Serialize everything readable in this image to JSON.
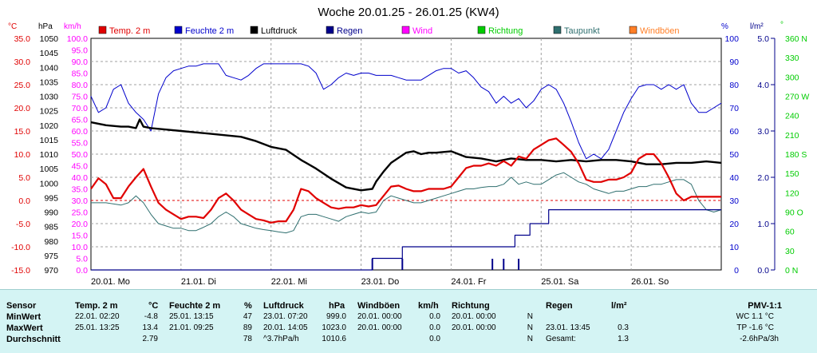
{
  "title": "Woche 20.01.25 - 26.01.25 (KW4)",
  "colors": {
    "temp": "#e00000",
    "humidity": "#0000cc",
    "pressure": "#000000",
    "rain": "#00008b",
    "wind": "#ff00ff",
    "direction": "#00cc00",
    "dewpoint": "#2f6f6f",
    "gusts": "#ff7f27",
    "grid": "#a0a0a0",
    "zero": "#e00000"
  },
  "legend": [
    {
      "label": "Temp. 2 m",
      "color": "#e00000"
    },
    {
      "label": "Feuchte  2 m",
      "color": "#0000cc"
    },
    {
      "label": "Luftdruck",
      "color": "#000000"
    },
    {
      "label": "Regen",
      "color": "#00008b"
    },
    {
      "label": "Wind",
      "color": "#ff00ff"
    },
    {
      "label": "Richtung",
      "color": "#00cc00"
    },
    {
      "label": "Taupunkt",
      "color": "#2f6f6f"
    },
    {
      "label": "Windböen",
      "color": "#ff7f27"
    }
  ],
  "axis_units": {
    "temp": "°C",
    "pressure": "hPa",
    "wind": "km/h",
    "humidity": "%",
    "rain": "l/m²",
    "direction": "°"
  },
  "chart_data": {
    "type": "line",
    "title": "Woche 20.01.25 - 26.01.25 (KW4)",
    "x_unit": "hours since 20.01. 00:00",
    "x_range": [
      0,
      168
    ],
    "x_tick_labels": [
      "20.01. Mo",
      "21.01. Di",
      "22.01. Mi",
      "23.01. Do",
      "24.01. Fr",
      "25.01. Sa",
      "26.01. So"
    ],
    "temp_ticks": [
      "35.0",
      "30.0",
      "25.0",
      "20.0",
      "15.0",
      "10.0",
      "5.0",
      "0.0",
      "-5.0",
      "-10.0",
      "-15.0"
    ],
    "pressure_ticks": [
      "1050",
      "1045",
      "1040",
      "1035",
      "1030",
      "1025",
      "1020",
      "1015",
      "1010",
      "1005",
      "1000",
      "995",
      "990",
      "985",
      "980",
      "975",
      "970"
    ],
    "wind_ticks": [
      "100.0",
      "95.0",
      "90.0",
      "85.0",
      "80.0",
      "75.0",
      "70.0",
      "65.0",
      "60.0",
      "55.0",
      "50.0",
      "45.0",
      "40.0",
      "35.0",
      "30.0",
      "25.0",
      "20.0",
      "15.0",
      "10.0",
      "5.0",
      "0.0"
    ],
    "humidity_ticks": [
      "100",
      "90",
      "80",
      "70",
      "60",
      "50",
      "40",
      "30",
      "20",
      "10",
      "0"
    ],
    "rain_ticks": [
      "5.0",
      "4.0",
      "3.0",
      "2.0",
      "1.0",
      "0.0"
    ],
    "direction_ticks": [
      "360 N",
      "330",
      "300",
      "270 W",
      "240",
      "210",
      "180 S",
      "150",
      "120",
      "90 O",
      "60",
      "30",
      "0 N"
    ],
    "ylim_temp": [
      -15,
      35
    ],
    "ylim_pressure": [
      970,
      1050
    ],
    "ylim_humidity": [
      0,
      100
    ],
    "ylim_rain": [
      0,
      5
    ],
    "series": [
      {
        "name": "Temp. 2 m",
        "axis": "temp",
        "color": "#e00000",
        "x": [
          0,
          2,
          4,
          6,
          8,
          10,
          12,
          14,
          16,
          18,
          20,
          22,
          24,
          26,
          28,
          30,
          32,
          34,
          36,
          38,
          40,
          42,
          44,
          46,
          48,
          50,
          52,
          54,
          56,
          58,
          60,
          62,
          64,
          66,
          68,
          70,
          72,
          74,
          76,
          78,
          80,
          82,
          84,
          86,
          88,
          90,
          92,
          94,
          96,
          98,
          100,
          102,
          104,
          106,
          108,
          110,
          112,
          114,
          116,
          118,
          120,
          122,
          124,
          126,
          128,
          130,
          132,
          134,
          136,
          138,
          140,
          142,
          144,
          146,
          148,
          150,
          152,
          154,
          156,
          158,
          160,
          162,
          164,
          166,
          168
        ],
        "y": [
          2.5,
          4.8,
          3.5,
          0.5,
          0.5,
          3.0,
          5.0,
          6.8,
          3.0,
          -0.5,
          -2.0,
          -3.0,
          -4.0,
          -3.5,
          -3.5,
          -3.8,
          -2.0,
          0.5,
          1.5,
          0,
          -2.0,
          -3.0,
          -4.0,
          -4.3,
          -4.8,
          -4.5,
          -4.5,
          -2.0,
          2.5,
          2.0,
          0.5,
          -0.5,
          -1.5,
          -1.8,
          -1.5,
          -1.5,
          -1.0,
          -1.3,
          -1.0,
          1.0,
          3.0,
          3.2,
          2.5,
          2.0,
          2.0,
          2.5,
          2.5,
          2.5,
          3.0,
          5.0,
          7.0,
          7.5,
          7.5,
          8.0,
          7.5,
          8.5,
          7.5,
          9.5,
          9.0,
          11.0,
          12.0,
          13.0,
          13.4,
          12.0,
          10.5,
          8.0,
          4.5,
          4.0,
          4.0,
          4.5,
          4.5,
          5.0,
          6.0,
          9.0,
          10.0,
          10.0,
          8.0,
          5.0,
          1.5,
          0.0,
          0.8,
          0.8,
          0.8,
          0.8,
          0.8
        ]
      },
      {
        "name": "Taupunkt",
        "axis": "temp",
        "color": "#2f6f6f",
        "x": [
          0,
          4,
          8,
          10,
          12,
          14,
          16,
          18,
          20,
          22,
          24,
          26,
          28,
          30,
          32,
          34,
          36,
          38,
          40,
          42,
          44,
          46,
          48,
          50,
          52,
          54,
          56,
          58,
          60,
          62,
          64,
          66,
          68,
          70,
          72,
          74,
          76,
          78,
          80,
          82,
          84,
          86,
          88,
          90,
          92,
          94,
          96,
          98,
          100,
          102,
          104,
          106,
          108,
          110,
          112,
          114,
          116,
          118,
          120,
          122,
          124,
          126,
          128,
          130,
          132,
          134,
          136,
          138,
          140,
          142,
          144,
          146,
          148,
          150,
          152,
          154,
          156,
          158,
          160,
          162,
          164,
          166,
          168
        ],
        "y": [
          -0.5,
          -0.5,
          -1.0,
          -0.5,
          1.0,
          -0.5,
          -3.0,
          -5.0,
          -5.5,
          -6.0,
          -6.0,
          -6.5,
          -6.5,
          -5.8,
          -5.0,
          -3.5,
          -2.5,
          -3.5,
          -5.0,
          -5.5,
          -6.0,
          -6.3,
          -6.5,
          -6.8,
          -7.0,
          -6.5,
          -3.5,
          -3.0,
          -3.0,
          -3.5,
          -4.0,
          -4.5,
          -3.5,
          -3.0,
          -2.5,
          -2.8,
          -2.5,
          0.0,
          1.0,
          0.5,
          0.0,
          -0.5,
          -0.5,
          0.0,
          0.5,
          1.0,
          1.5,
          2.0,
          2.5,
          2.5,
          2.8,
          3.0,
          3.0,
          3.5,
          5.0,
          3.5,
          4.0,
          3.5,
          3.5,
          4.5,
          5.5,
          6.0,
          5.0,
          4.0,
          3.5,
          2.5,
          2.0,
          1.5,
          2.0,
          2.0,
          2.5,
          3.0,
          3.0,
          3.5,
          3.5,
          4.0,
          4.5,
          4.5,
          3.5,
          0.0,
          -2.0,
          -2.5,
          -2.0
        ]
      },
      {
        "name": "Luftdruck",
        "axis": "pressure",
        "color": "#000000",
        "x": [
          0,
          4,
          8,
          10,
          12,
          13,
          14,
          16,
          20,
          24,
          28,
          32,
          36,
          40,
          44,
          48,
          52,
          56,
          60,
          64,
          68,
          72,
          75,
          76,
          78,
          80,
          84,
          86,
          88,
          90,
          92,
          96,
          100,
          104,
          108,
          112,
          116,
          120,
          124,
          128,
          132,
          136,
          140,
          144,
          148,
          152,
          156,
          160,
          164,
          168
        ],
        "y": [
          1021.0,
          1020.0,
          1019.5,
          1019.5,
          1019.0,
          1022.0,
          1019.5,
          1019.0,
          1018.5,
          1018.0,
          1017.5,
          1017.0,
          1016.5,
          1016.0,
          1014.5,
          1012.5,
          1011.5,
          1008.0,
          1005.0,
          1001.5,
          998.5,
          997.5,
          998.0,
          1000.5,
          1004.0,
          1007.0,
          1010.5,
          1011.0,
          1010.0,
          1010.5,
          1010.5,
          1011.0,
          1009.0,
          1008.5,
          1007.5,
          1008.5,
          1008.0,
          1008.0,
          1007.5,
          1008.0,
          1007.5,
          1008.0,
          1008.0,
          1007.5,
          1006.5,
          1006.5,
          1007.0,
          1007.0,
          1007.5,
          1007.0
        ]
      },
      {
        "name": "Feuchte  2 m",
        "axis": "humidity",
        "color": "#0000cc",
        "x": [
          0,
          2,
          4,
          6,
          8,
          10,
          12,
          14,
          16,
          18,
          20,
          22,
          24,
          26,
          28,
          30,
          32,
          34,
          36,
          38,
          40,
          42,
          44,
          46,
          48,
          50,
          52,
          54,
          56,
          58,
          60,
          62,
          64,
          66,
          68,
          70,
          72,
          74,
          76,
          78,
          80,
          82,
          84,
          86,
          88,
          90,
          92,
          94,
          96,
          98,
          100,
          102,
          104,
          106,
          108,
          110,
          112,
          114,
          116,
          118,
          120,
          122,
          124,
          126,
          128,
          130,
          132,
          134,
          136,
          138,
          140,
          142,
          144,
          146,
          148,
          150,
          152,
          154,
          156,
          158,
          160,
          162,
          164,
          166,
          168
        ],
        "y": [
          75,
          68,
          70,
          78,
          80,
          72,
          68,
          65,
          60,
          76,
          83,
          86,
          87,
          88,
          88,
          89,
          89,
          89,
          84,
          83,
          82,
          84,
          87,
          89,
          89,
          89,
          89,
          89,
          89,
          88,
          85,
          78,
          80,
          83,
          85,
          84,
          85,
          85,
          84,
          84,
          84,
          83,
          82,
          82,
          82,
          84,
          86,
          87,
          87,
          85,
          86,
          83,
          79,
          77,
          72,
          75,
          72,
          74,
          70,
          73,
          78,
          80,
          78,
          72,
          64,
          55,
          48,
          50,
          48,
          52,
          60,
          68,
          74,
          79,
          80,
          80,
          78,
          80,
          78,
          80,
          72,
          68,
          68,
          70,
          72
        ]
      },
      {
        "name": "Regen",
        "axis": "rain",
        "color": "#00008b",
        "x": [
          0,
          74,
          75,
          80,
          82,
          83,
          98,
          99,
          100,
          101,
          104,
          108,
          110,
          112,
          113,
          116,
          117,
          120,
          122,
          126,
          130,
          140,
          150,
          160,
          168
        ],
        "y": [
          0,
          0,
          0.25,
          0.25,
          0.25,
          0.5,
          0.5,
          0.5,
          0.5,
          0.5,
          0.5,
          0.5,
          0.5,
          0.5,
          0.75,
          0.75,
          1.0,
          1.0,
          1.3,
          1.3,
          1.3,
          1.3,
          1.3,
          1.3,
          1.3
        ]
      }
    ],
    "rain_bars_hours": [
      75,
      83,
      107,
      110,
      114
    ]
  },
  "stats": {
    "headers": {
      "sensor": "Sensor",
      "temp": "Temp. 2 m",
      "temp_unit": "°C",
      "hum": "Feuchte  2 m",
      "hum_unit": "%",
      "press": "Luftdruck",
      "press_unit": "hPa",
      "gust": "Windböen",
      "gust_unit": "km/h",
      "dir": "Richtung",
      "rain": "Regen",
      "rain_unit": "l/m²",
      "pmv": "PMV-1:1"
    },
    "rows": {
      "min": "MinWert",
      "max": "MaxWert",
      "avg": "Durchschnitt"
    },
    "temp": {
      "min_t": "22.01.  02:20",
      "min_v": "-4.8",
      "max_t": "25.01.  13:25",
      "max_v": "13.4",
      "avg_v": "2.79"
    },
    "hum": {
      "min_t": "25.01.  13:15",
      "min_v": "47",
      "max_t": "21.01.  09:25",
      "max_v": "89",
      "avg_v": "78"
    },
    "press": {
      "min_t": "23.01.  07:20",
      "min_v": "999.0",
      "max_t": "20.01.  14:05",
      "max_v": "1023.0",
      "avg_t": "^3.7hPa/h",
      "avg_v": "1010.6"
    },
    "gust": {
      "min_t": "20.01.  00:00",
      "min_v": "0.0",
      "max_t": "20.01.  00:00",
      "max_v": "0.0",
      "avg_v": "0.0"
    },
    "dir": {
      "min_t": "20.01.  00:00",
      "min_v": "N",
      "max_t": "20.01.  00:00",
      "max_v": "N",
      "avg_v": "N"
    },
    "rain": {
      "max_t": "23.01.  13:45",
      "max_v": "0.3",
      "avg_t": "Gesamt:",
      "avg_v": "1.3"
    },
    "pmv": {
      "wc": "WC 1.1 °C",
      "tp": "TP -1.6 °C",
      "trend": "-2.6hPa/3h"
    }
  }
}
